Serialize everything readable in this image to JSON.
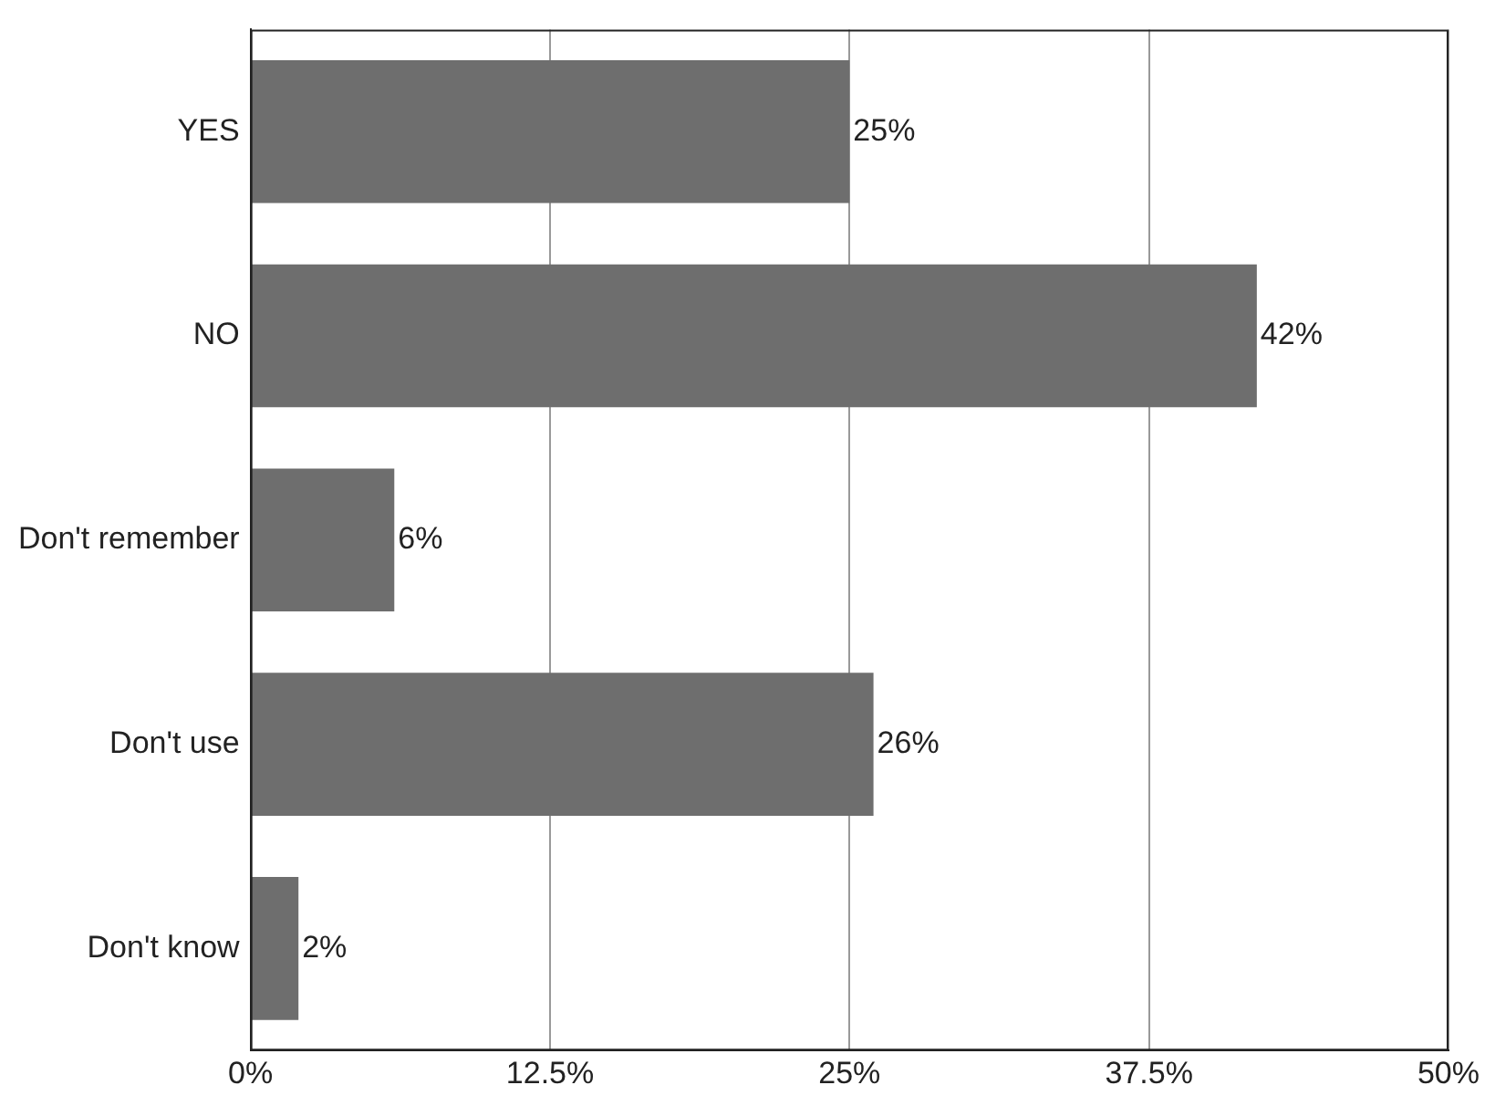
{
  "chart_data": {
    "type": "bar",
    "orientation": "horizontal",
    "categories": [
      "YES",
      "NO",
      "Don't remember",
      "Don't use",
      "Don't know"
    ],
    "values": [
      25,
      42,
      6,
      26,
      2
    ],
    "value_labels": [
      "25%",
      "42%",
      "6%",
      "26%",
      "2%"
    ],
    "color": "#6e6e6e",
    "xlim": [
      0,
      50
    ],
    "xticks": [
      {
        "value": 0,
        "label": "0%"
      },
      {
        "value": 12.5,
        "label": "12.5%"
      },
      {
        "value": 25,
        "label": "25%"
      },
      {
        "value": 37.5,
        "label": "37.5%"
      },
      {
        "value": 50,
        "label": "50%"
      }
    ],
    "grid": "x",
    "legend": false
  }
}
